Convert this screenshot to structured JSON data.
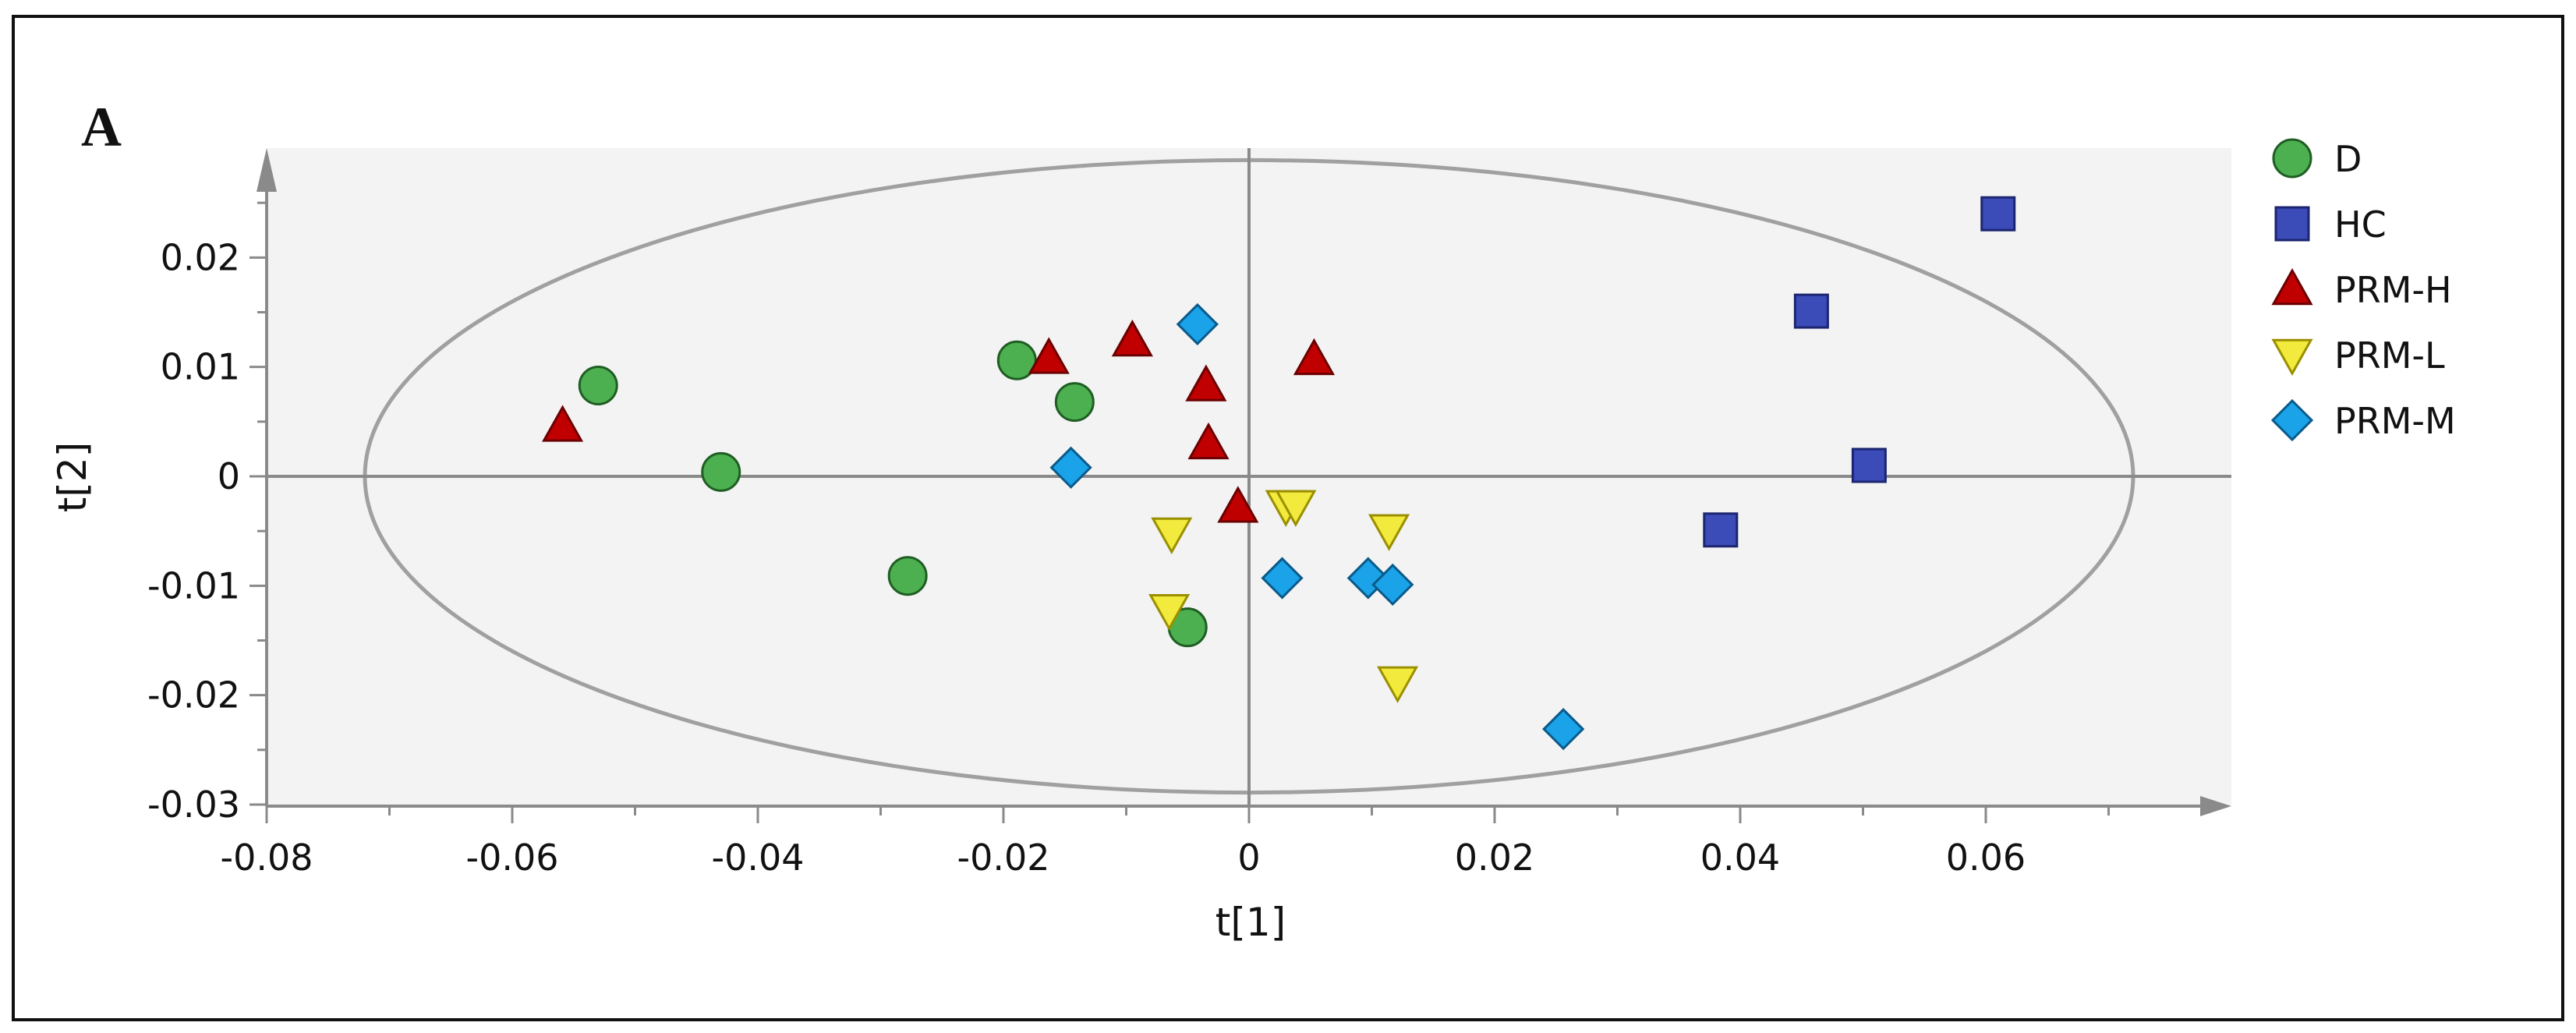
{
  "panel_label": "A",
  "chart_data": {
    "type": "scatter",
    "title": "",
    "panel": "A",
    "xlabel": "t[1]",
    "ylabel": "t[2]",
    "xlim": [
      -0.08,
      0.08
    ],
    "ylim": [
      -0.03,
      0.03
    ],
    "x_ticks": [
      -0.08,
      -0.06,
      -0.04,
      -0.02,
      0,
      0.02,
      0.04,
      0.06
    ],
    "x_tick_labels": [
      "-0.08",
      "-0.06",
      "-0.04",
      "-0.02",
      "0",
      "0.02",
      "0.04",
      "0.06"
    ],
    "y_ticks": [
      -0.03,
      -0.02,
      -0.01,
      0,
      0.01,
      0.02
    ],
    "y_tick_labels": [
      "-0.03",
      "-0.02",
      "-0.01",
      "0",
      "0.01",
      "0.02"
    ],
    "grid": false,
    "legend_position": "right",
    "confidence_ellipse": {
      "x_semi_axis": 0.072,
      "y_semi_axis": 0.0289
    },
    "series": [
      {
        "name": "D",
        "marker": "circle",
        "color": "#4caf50",
        "stroke": "#1f5e23",
        "points": [
          {
            "x": -0.053,
            "y": 0.0083
          },
          {
            "x": -0.043,
            "y": 0.0004
          },
          {
            "x": -0.0189,
            "y": 0.0106
          },
          {
            "x": -0.0142,
            "y": 0.0068
          },
          {
            "x": -0.0278,
            "y": -0.0091
          },
          {
            "x": -0.005,
            "y": -0.0138
          }
        ]
      },
      {
        "name": "HC",
        "marker": "square",
        "color": "#3b4bb8",
        "stroke": "#1c2570",
        "points": [
          {
            "x": 0.061,
            "y": 0.024
          },
          {
            "x": 0.0458,
            "y": 0.0151
          },
          {
            "x": 0.0505,
            "y": 0.001
          },
          {
            "x": 0.0384,
            "y": -0.0049
          }
        ]
      },
      {
        "name": "PRM-H",
        "marker": "triangle-up",
        "color": "#c00000",
        "stroke": "#6b0000",
        "points": [
          {
            "x": -0.0559,
            "y": 0.0046
          },
          {
            "x": -0.0163,
            "y": 0.0108
          },
          {
            "x": -0.0095,
            "y": 0.0124
          },
          {
            "x": -0.0035,
            "y": 0.0083
          },
          {
            "x": -0.0033,
            "y": 0.003
          },
          {
            "x": 0.0053,
            "y": 0.0107
          },
          {
            "x": -0.0009,
            "y": -0.0028
          }
        ]
      },
      {
        "name": "PRM-L",
        "marker": "triangle-down",
        "color": "#f2ea3c",
        "stroke": "#9a8f00",
        "points": [
          {
            "x": -0.0063,
            "y": -0.0052
          },
          {
            "x": -0.0065,
            "y": -0.0122
          },
          {
            "x": 0.003,
            "y": -0.0027
          },
          {
            "x": 0.0038,
            "y": -0.0027
          },
          {
            "x": 0.0114,
            "y": -0.0049
          },
          {
            "x": 0.0121,
            "y": -0.0188
          }
        ]
      },
      {
        "name": "PRM-M",
        "marker": "diamond",
        "color": "#1aa3e8",
        "stroke": "#0a5a8a",
        "points": [
          {
            "x": -0.0042,
            "y": 0.0139
          },
          {
            "x": -0.0145,
            "y": 0.0008
          },
          {
            "x": 0.0027,
            "y": -0.0093
          },
          {
            "x": 0.0097,
            "y": -0.0093
          },
          {
            "x": 0.0117,
            "y": -0.0099
          },
          {
            "x": 0.0256,
            "y": -0.0231
          }
        ]
      }
    ]
  }
}
